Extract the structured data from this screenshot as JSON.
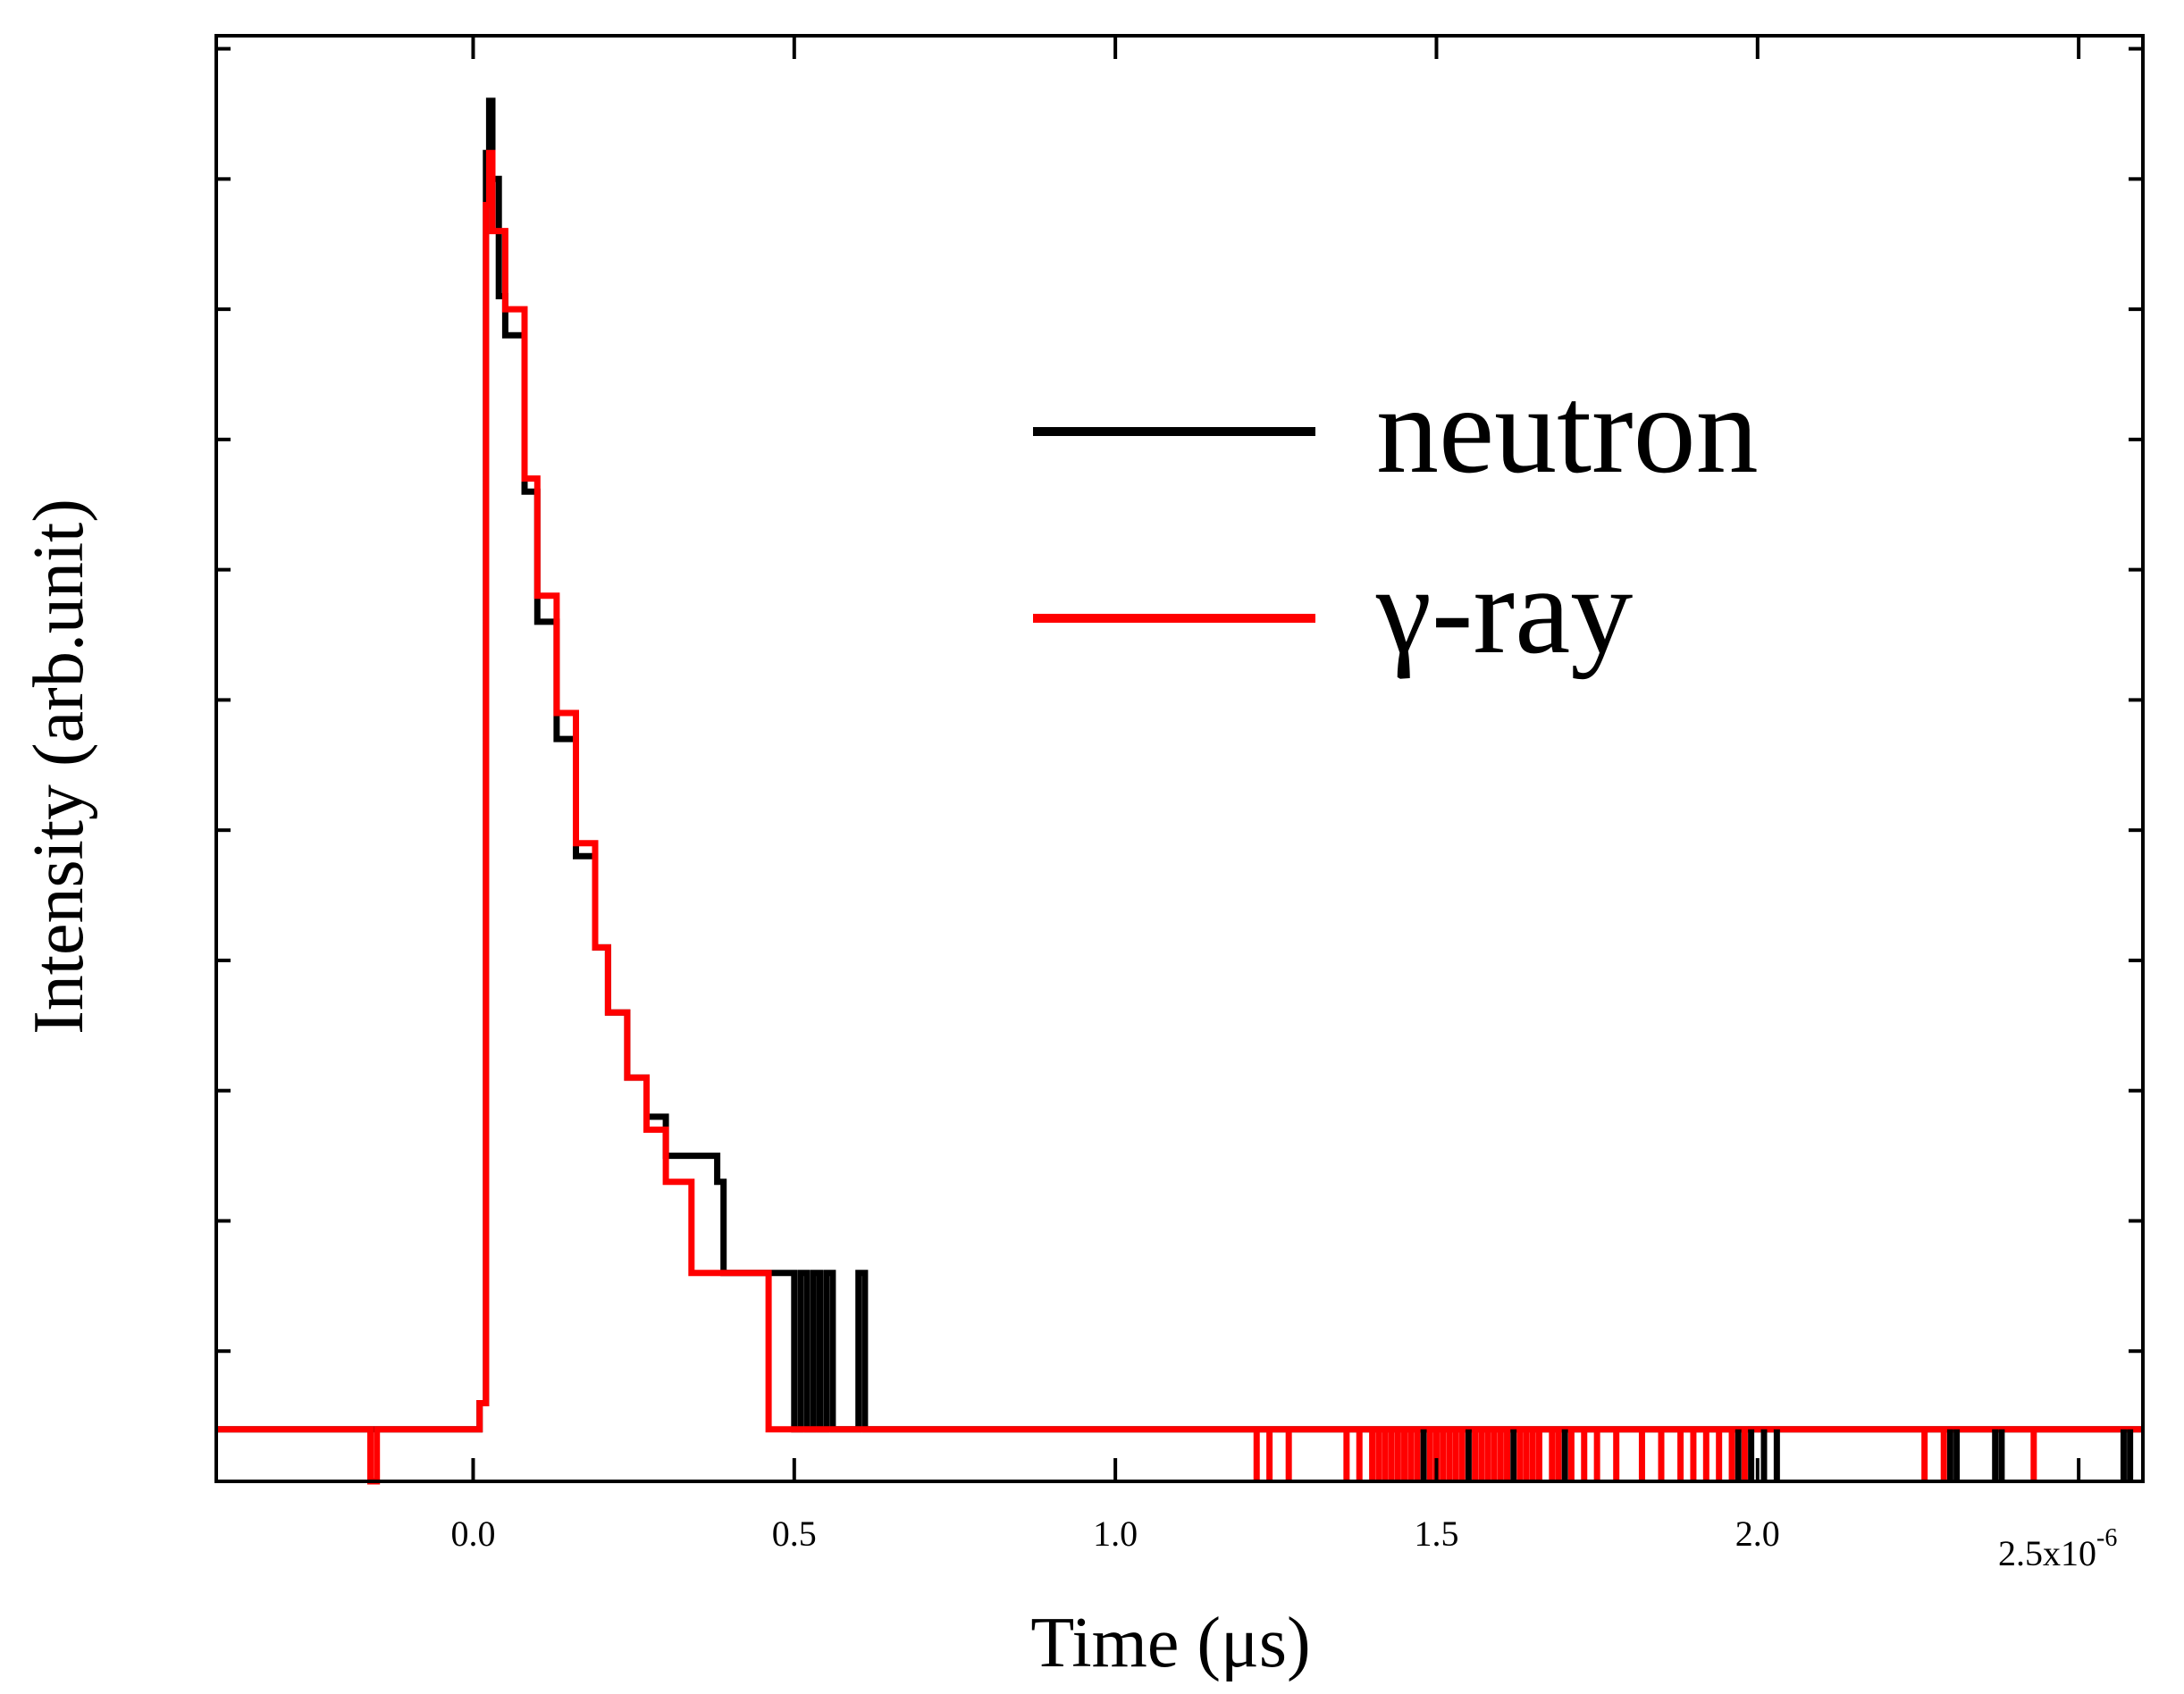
{
  "chart_data": {
    "type": "line",
    "title": "",
    "xlabel": "Time (μs)",
    "ylabel": "Intensity (arb.unit)",
    "xlim": [
      -0.4,
      2.6
    ],
    "ylim": [
      -0.04,
      1.07
    ],
    "x_ticks": [
      0.0,
      0.5,
      1.0,
      1.5,
      2.0
    ],
    "x_tick_labels": [
      "0.0",
      "0.5",
      "1.0",
      "1.5",
      "2.0"
    ],
    "x_exponent_base": "2.5x10",
    "x_exponent_power": "-6",
    "legend_position": "top-right",
    "series": [
      {
        "name": "neutron",
        "color": "#000000",
        "x": [
          -0.4,
          0.0,
          0.01,
          0.02,
          0.025,
          0.03,
          0.04,
          0.05,
          0.08,
          0.1,
          0.13,
          0.16,
          0.19,
          0.21,
          0.24,
          0.27,
          0.3,
          0.38,
          0.39,
          0.49,
          0.5,
          0.51,
          0.52,
          0.53,
          0.54,
          0.55,
          0.56,
          0.6,
          0.61,
          2.6
        ],
        "y": [
          0.0,
          0.0,
          0.02,
          0.98,
          1.02,
          0.96,
          0.87,
          0.84,
          0.72,
          0.62,
          0.53,
          0.44,
          0.37,
          0.32,
          0.27,
          0.24,
          0.21,
          0.19,
          0.12,
          0.12,
          0.0,
          0.12,
          0.0,
          0.12,
          0.0,
          0.12,
          0.0,
          0.12,
          0.0,
          0.0
        ]
      },
      {
        "name": "γ-ray",
        "color": "#ff0000",
        "x": [
          -0.4,
          -0.16,
          -0.16,
          -0.15,
          -0.15,
          0.0,
          0.01,
          0.02,
          0.025,
          0.03,
          0.05,
          0.08,
          0.1,
          0.13,
          0.16,
          0.19,
          0.21,
          0.24,
          0.27,
          0.3,
          0.34,
          0.45,
          0.46,
          2.6
        ],
        "y": [
          0.0,
          0.0,
          -0.04,
          -0.04,
          0.0,
          0.0,
          0.02,
          0.94,
          0.98,
          0.92,
          0.86,
          0.73,
          0.64,
          0.55,
          0.45,
          0.37,
          0.32,
          0.27,
          0.23,
          0.19,
          0.12,
          0.12,
          0.0,
          0.0
        ]
      }
    ],
    "black_noise_spikes_x": [
      1.48,
      1.55,
      1.62,
      1.7,
      1.97,
      1.99,
      2.01,
      2.03,
      2.3,
      2.31,
      2.37,
      2.38,
      2.57,
      2.58
    ],
    "red_noise_spikes_x": [
      1.22,
      1.24,
      1.27,
      1.36,
      1.38,
      1.4,
      1.41,
      1.42,
      1.43,
      1.44,
      1.45,
      1.46,
      1.47,
      1.49,
      1.5,
      1.51,
      1.52,
      1.53,
      1.54,
      1.56,
      1.57,
      1.58,
      1.59,
      1.6,
      1.61,
      1.63,
      1.64,
      1.65,
      1.66,
      1.68,
      1.69,
      1.71,
      1.73,
      1.75,
      1.78,
      1.82,
      1.85,
      1.88,
      1.9,
      1.92,
      1.94,
      1.96,
      1.98,
      2.26,
      2.29,
      2.43
    ]
  }
}
